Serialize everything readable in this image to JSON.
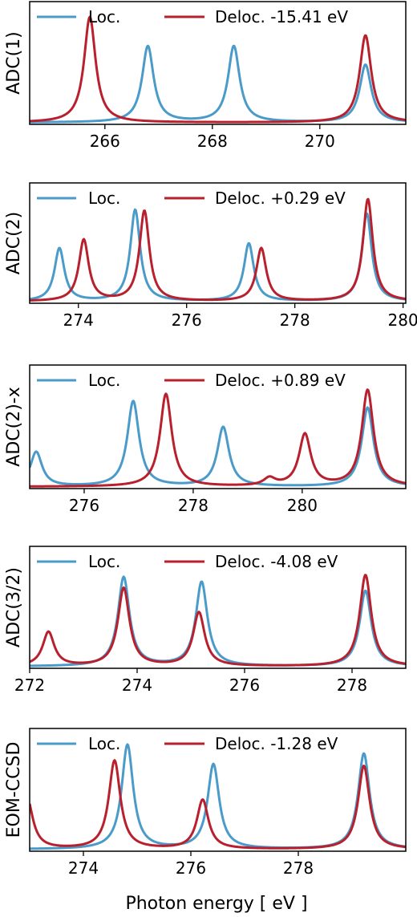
{
  "colors": {
    "loc": "#4a9bc9",
    "deloc": "#b8202e"
  },
  "xlabel": "Photon energy [ eV ]",
  "chart_data": [
    {
      "type": "line",
      "ylabel": "ADC(1)",
      "xlim": [
        264.6,
        271.6
      ],
      "xticks": [
        266,
        268,
        270
      ],
      "xtick_labels": [
        "266",
        "268",
        "270"
      ],
      "ylim": [
        0,
        1.0
      ],
      "series": [
        {
          "name": "Loc.",
          "peaks": [
            [
              266.8,
              0.62
            ],
            [
              268.4,
              0.62
            ],
            [
              270.85,
              0.47
            ]
          ]
        },
        {
          "name": "Deloc. -15.41 eV",
          "peaks": [
            [
              265.72,
              0.86
            ],
            [
              270.85,
              0.71
            ]
          ]
        }
      ],
      "width": 0.13
    },
    {
      "type": "line",
      "ylabel": "ADC(2)",
      "xlim": [
        273.1,
        280.05
      ],
      "xticks": [
        274,
        276,
        278,
        280
      ],
      "xtick_labels": [
        "274",
        "276",
        "278",
        "280"
      ],
      "ylim": [
        0,
        1.0
      ],
      "series": [
        {
          "name": "Loc.",
          "peaks": [
            [
              273.65,
              0.44
            ],
            [
              275.05,
              0.76
            ],
            [
              277.15,
              0.48
            ],
            [
              279.33,
              0.73
            ]
          ]
        },
        {
          "name": "Deloc. +0.29 eV",
          "peaks": [
            [
              274.1,
              0.51
            ],
            [
              275.22,
              0.75
            ],
            [
              277.38,
              0.44
            ],
            [
              279.35,
              0.85
            ]
          ]
        }
      ],
      "width": 0.11
    },
    {
      "type": "line",
      "ylabel": "ADC(2)-x",
      "xlim": [
        275.0,
        281.9
      ],
      "xticks": [
        276,
        278,
        280
      ],
      "xtick_labels": [
        "276",
        "278",
        "280"
      ],
      "ylim": [
        0,
        1.0
      ],
      "series": [
        {
          "name": "Loc.",
          "peaks": [
            [
              275.12,
              0.28
            ],
            [
              276.9,
              0.69
            ],
            [
              278.55,
              0.48
            ],
            [
              281.2,
              0.64
            ]
          ]
        },
        {
          "name": "Deloc. +0.89 eV",
          "peaks": [
            [
              277.5,
              0.75
            ],
            [
              279.4,
              0.06
            ],
            [
              280.05,
              0.42
            ],
            [
              281.2,
              0.78
            ]
          ]
        }
      ],
      "width": 0.13
    },
    {
      "type": "line",
      "ylabel": "ADC(3/2)",
      "xlim": [
        272.0,
        279.0
      ],
      "xticks": [
        272,
        274,
        276,
        278
      ],
      "xtick_labels": [
        "272",
        "274",
        "276",
        "278"
      ],
      "ylim": [
        0,
        1.0
      ],
      "series": [
        {
          "name": "Loc.",
          "peaks": [
            [
              273.75,
              0.73
            ],
            [
              275.2,
              0.69
            ],
            [
              278.25,
              0.62
            ]
          ]
        },
        {
          "name": "Deloc. -4.08 eV",
          "peaks": [
            [
              272.35,
              0.28
            ],
            [
              273.75,
              0.64
            ],
            [
              275.15,
              0.44
            ],
            [
              278.25,
              0.75
            ]
          ]
        }
      ],
      "width": 0.13
    },
    {
      "type": "line",
      "ylabel": "EOM-CCSD",
      "xlim": [
        273.0,
        280.0
      ],
      "xticks": [
        274,
        276,
        278
      ],
      "xtick_labels": [
        "274",
        "276",
        "278"
      ],
      "ylim": [
        0,
        1.0
      ],
      "series": [
        {
          "name": "Loc.",
          "peaks": [
            [
              274.82,
              0.85
            ],
            [
              276.42,
              0.69
            ],
            [
              279.22,
              0.78
            ]
          ]
        },
        {
          "name": "Deloc. -1.28 eV",
          "peaks": [
            [
              272.95,
              0.42
            ],
            [
              274.58,
              0.72
            ],
            [
              276.22,
              0.4
            ],
            [
              279.22,
              0.68
            ]
          ]
        }
      ],
      "width": 0.13
    }
  ]
}
